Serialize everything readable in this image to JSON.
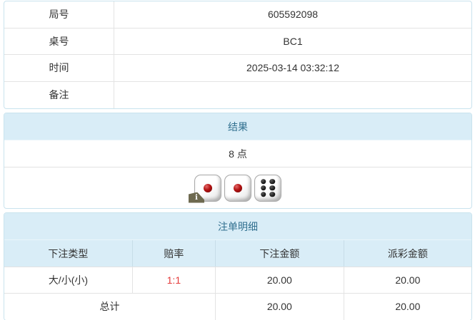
{
  "info_table": {
    "rows": [
      {
        "label": "局号",
        "value": "605592098"
      },
      {
        "label": "桌号",
        "value": "BC1"
      },
      {
        "label": "时间",
        "value": "2025-03-14 03:32:12"
      },
      {
        "label": "备注",
        "value": ""
      }
    ]
  },
  "result_panel": {
    "title": "结果",
    "points": "8 点",
    "dice": [
      1,
      1,
      6
    ],
    "info_badge": "i"
  },
  "bets_panel": {
    "title": "注单明细",
    "columns": [
      "下注类型",
      "赔率",
      "下注金额",
      "派彩金额"
    ],
    "rows": [
      {
        "type": "大/小(小)",
        "odds": "1:1",
        "bet": "20.00",
        "payout": "20.00"
      }
    ],
    "total": {
      "label": "总计",
      "bet": "20.00",
      "payout": "20.00"
    }
  },
  "colors": {
    "panel_border": "#c9e3ee",
    "heading_bg": "#d9edf7",
    "heading_text": "#31708f",
    "row_divider": "#e3e3e3",
    "body_text": "#333333",
    "odds_red": "#e43a3a",
    "badge_olive": "#6e6a50"
  }
}
